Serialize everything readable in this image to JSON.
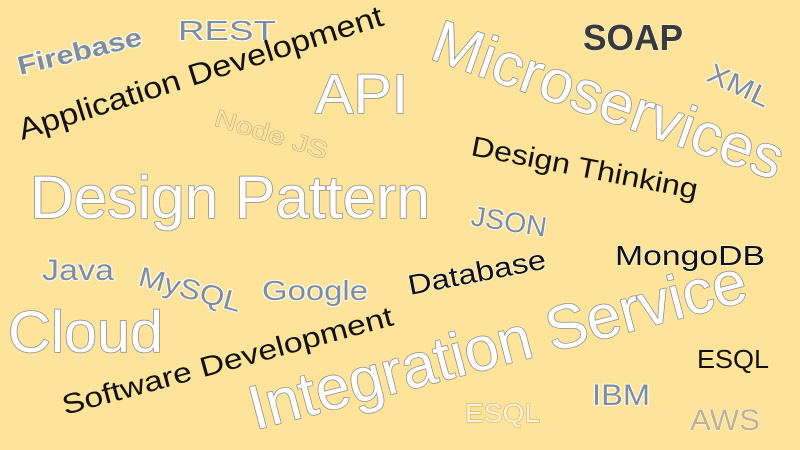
{
  "words": [
    "Firebase",
    "REST",
    "Application Development",
    "API",
    "Microservices",
    "SOAP",
    "XML",
    "Node JS",
    "Design Thinking",
    "Design Pattern",
    "JSON",
    "MongoDB",
    "Java",
    "MySQL",
    "Google",
    "Database",
    "Cloud",
    "Integration Service",
    "Software Development",
    "ESQL",
    "IBM",
    "ESQL",
    "AWS"
  ]
}
